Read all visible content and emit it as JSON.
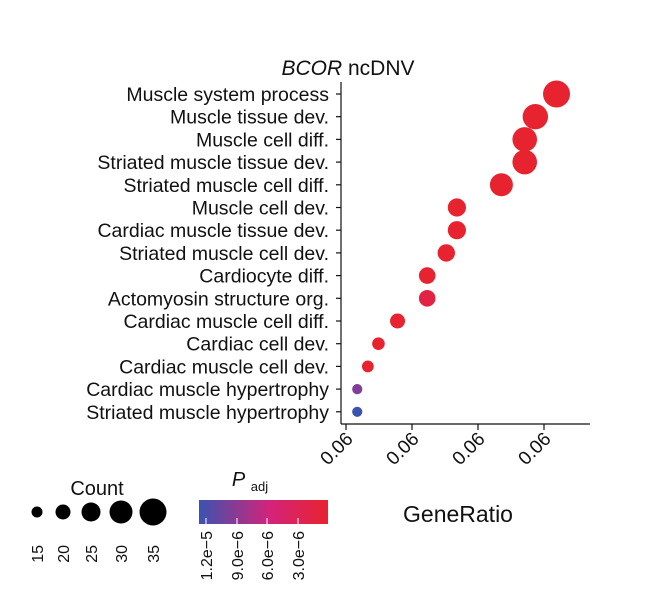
{
  "chart_data": {
    "type": "scatter",
    "title": "ncDNV",
    "title_italic_prefix": "BCOR",
    "xlabel": "GeneRatio",
    "ylabel": "",
    "x_tick_labels": [
      "0.06",
      "0.06",
      "0.06",
      "0.06",
      "0.06"
    ],
    "xlim": [
      0.0,
      1.0
    ],
    "color_scale": {
      "label": "P",
      "label_sub": "adj",
      "low_color": "#3b53b0",
      "mid_color": "#d4237a",
      "high_color": "#e8232f",
      "tick_labels": [
        "1.2e−5",
        "9.0e−6",
        "6.0e−6",
        "3.0e−6"
      ],
      "range": [
        1.2e-05,
        0.0
      ]
    },
    "size_legend": {
      "title": "Count",
      "values": [
        15,
        20,
        25,
        30,
        35
      ]
    },
    "points": [
      {
        "term": "Muscle system process",
        "x": 0.96,
        "count": 35,
        "padj": 1e-07
      },
      {
        "term": "Muscle tissue dev.",
        "x": 0.86,
        "count": 33,
        "padj": 1e-07
      },
      {
        "term": "Muscle cell diff.",
        "x": 0.81,
        "count": 32,
        "padj": 1e-07
      },
      {
        "term": "Striated muscle tissue dev.",
        "x": 0.81,
        "count": 32,
        "padj": 1e-07
      },
      {
        "term": "Striated muscle cell diff.",
        "x": 0.7,
        "count": 30,
        "padj": 1e-07
      },
      {
        "term": "Muscle cell dev.",
        "x": 0.49,
        "count": 24,
        "padj": 1e-07
      },
      {
        "term": "Cardiac muscle tissue dev.",
        "x": 0.49,
        "count": 24,
        "padj": 1e-07
      },
      {
        "term": "Striated muscle cell dev.",
        "x": 0.44,
        "count": 23,
        "padj": 1e-07
      },
      {
        "term": "Cardiocyte diff.",
        "x": 0.35,
        "count": 22,
        "padj": 1e-07
      },
      {
        "term": "Actomyosin structure org.",
        "x": 0.35,
        "count": 22,
        "padj": 1.5e-06
      },
      {
        "term": "Cardiac muscle cell diff.",
        "x": 0.21,
        "count": 20,
        "padj": 1e-07
      },
      {
        "term": "Cardiac cell dev.",
        "x": 0.12,
        "count": 17,
        "padj": 1e-07
      },
      {
        "term": "Cardiac muscle cell dev.",
        "x": 0.07,
        "count": 16,
        "padj": 1e-07
      },
      {
        "term": "Cardiac muscle hypertrophy",
        "x": 0.02,
        "count": 14,
        "padj": 9e-06
      },
      {
        "term": "Striated muscle hypertrophy",
        "x": 0.02,
        "count": 14,
        "padj": 1.2e-05
      }
    ]
  }
}
